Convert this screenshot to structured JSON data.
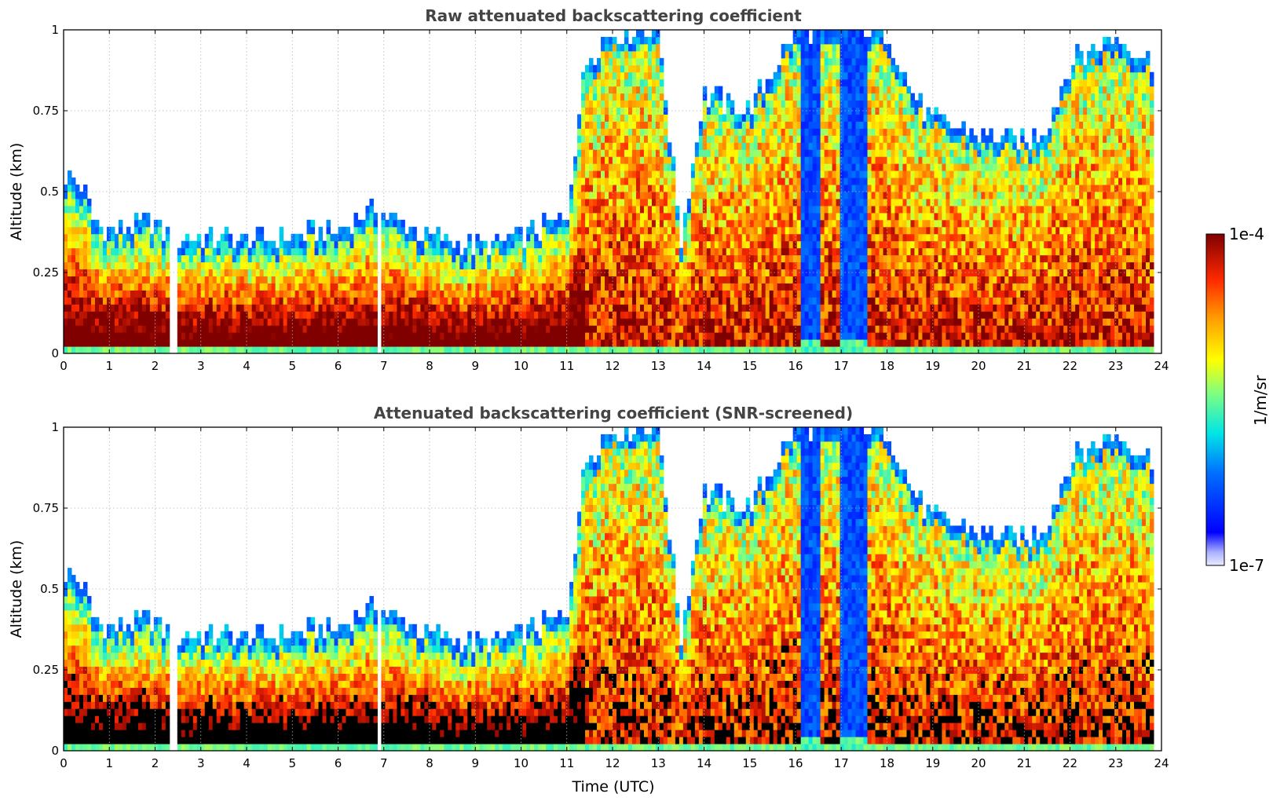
{
  "chart_data": [
    {
      "type": "heatmap",
      "title": "Raw attenuated backscattering coefficient",
      "ylabel": "Altitude (km)",
      "xlabel": "",
      "xlim": [
        0,
        24
      ],
      "ylim": [
        0,
        1
      ],
      "xticks": [
        "0",
        "1",
        "2",
        "3",
        "4",
        "5",
        "6",
        "7",
        "8",
        "9",
        "10",
        "11",
        "12",
        "13",
        "14",
        "15",
        "16",
        "17",
        "18",
        "19",
        "20",
        "21",
        "22",
        "23",
        "24"
      ],
      "yticks": [
        "0",
        "0.25",
        "0.5",
        "0.75",
        "1"
      ],
      "grid": true,
      "screened": false,
      "colorbar": "shared-right"
    },
    {
      "type": "heatmap",
      "title": "Attenuated backscattering coefficient (SNR-screened)",
      "ylabel": "Altitude (km)",
      "xlabel": "Time (UTC)",
      "xlim": [
        0,
        24
      ],
      "ylim": [
        0,
        1
      ],
      "xticks": [
        "0",
        "1",
        "2",
        "3",
        "4",
        "5",
        "6",
        "7",
        "8",
        "9",
        "10",
        "11",
        "12",
        "13",
        "14",
        "15",
        "16",
        "17",
        "18",
        "19",
        "20",
        "21",
        "22",
        "23",
        "24"
      ],
      "yticks": [
        "0",
        "0.25",
        "0.5",
        "0.75",
        "1"
      ],
      "grid": true,
      "screened": true,
      "colorbar": "shared-right"
    }
  ],
  "colorbar": {
    "label": "1/m/sr",
    "max_label": "1e-4",
    "min_label": "1e-7",
    "scale": "log",
    "range": [
      1e-07,
      0.0001
    ]
  },
  "profile": {
    "layer_top_km": [
      [
        0,
        0.55
      ],
      [
        0.5,
        0.5
      ],
      [
        0.6,
        0.42
      ],
      [
        1,
        0.38
      ],
      [
        2,
        0.4
      ],
      [
        2.3,
        0.36
      ],
      [
        2.5,
        0.36
      ],
      [
        3,
        0.36
      ],
      [
        4,
        0.35
      ],
      [
        5,
        0.36
      ],
      [
        6,
        0.38
      ],
      [
        6.9,
        0.45
      ],
      [
        7.2,
        0.42
      ],
      [
        8,
        0.36
      ],
      [
        9,
        0.33
      ],
      [
        10,
        0.36
      ],
      [
        11,
        0.42
      ],
      [
        11.4,
        0.9
      ],
      [
        12,
        1.0
      ],
      [
        13,
        1.0
      ],
      [
        13.5,
        0.35
      ],
      [
        14,
        0.8
      ],
      [
        15,
        0.75
      ],
      [
        16,
        1.0
      ],
      [
        17,
        1.0
      ],
      [
        18,
        1.0
      ],
      [
        18.5,
        0.82
      ],
      [
        19,
        0.72
      ],
      [
        20,
        0.68
      ],
      [
        21,
        0.65
      ],
      [
        21.5,
        0.7
      ],
      [
        22,
        0.9
      ],
      [
        23,
        0.98
      ],
      [
        23.8,
        0.9
      ]
    ],
    "gaps_utc": [
      [
        2.3,
        2.5
      ],
      [
        6.85,
        6.95
      ]
    ],
    "clear_column_utc": [
      [
        16.15,
        16.55
      ],
      [
        17.0,
        17.6
      ]
    ],
    "data_end_utc": 23.8
  }
}
